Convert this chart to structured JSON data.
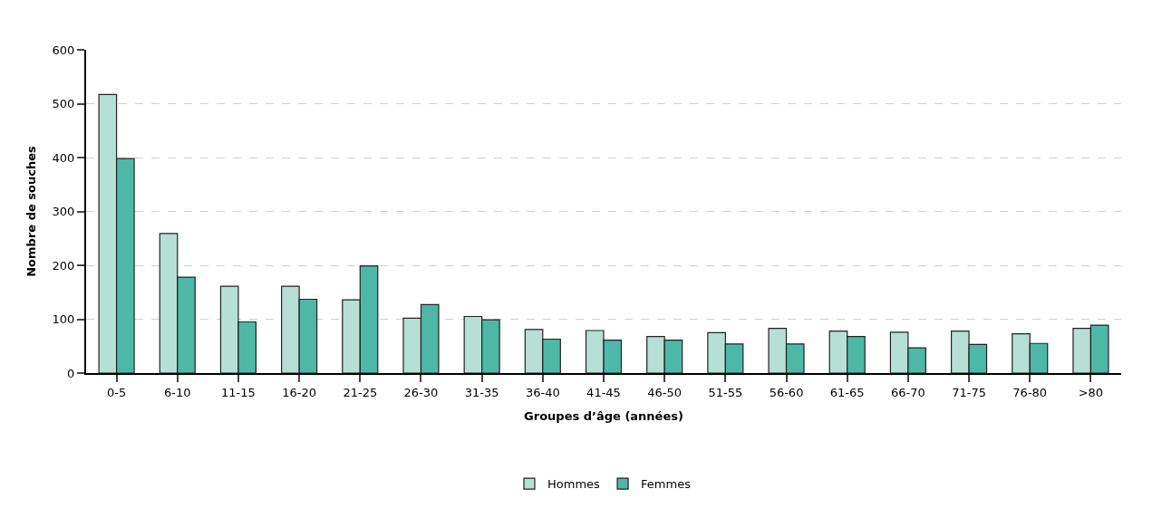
{
  "chart_data": {
    "type": "bar",
    "xlabel": "Groupes d’âge (années)",
    "ylabel": "Nombre de souches",
    "categories": [
      "0-5",
      "6-10",
      "11-15",
      "16-20",
      "21-25",
      "26-30",
      "31-35",
      "36-40",
      "41-45",
      "46-50",
      "51-55",
      "56-60",
      "61-65",
      "66-70",
      "71-75",
      "76-80",
      ">80"
    ],
    "series": [
      {
        "name": "Hommes",
        "color": "#b6dfd5",
        "values": [
          517,
          259,
          161,
          161,
          136,
          102,
          105,
          81,
          79,
          68,
          75,
          83,
          78,
          76,
          78,
          73,
          83
        ]
      },
      {
        "name": "Femmes",
        "color": "#4db8a6",
        "values": [
          398,
          178,
          95,
          137,
          199,
          127,
          99,
          63,
          61,
          61,
          54,
          54,
          68,
          47,
          53,
          55,
          89
        ]
      }
    ],
    "ylim": [
      0,
      600
    ],
    "yticks": [
      0,
      100,
      200,
      300,
      400,
      500,
      600
    ],
    "grid": "y",
    "legend": "bottom"
  }
}
